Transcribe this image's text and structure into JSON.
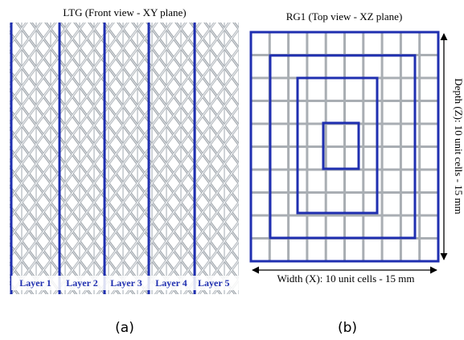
{
  "panel_a": {
    "title": "LTG (Front view - XY plane)",
    "layers": [
      "Layer 1",
      "Layer 2",
      "Layer 3",
      "Layer 4",
      "Layer 5"
    ],
    "caption": "(a)"
  },
  "panel_b": {
    "title": "RG1 (Top view - XZ plane)",
    "width_label": "Width (X): 10 unit cells - 15 mm",
    "depth_label": "Depth (Z): 10 unit cells - 15 mm",
    "caption": "(b)"
  }
}
